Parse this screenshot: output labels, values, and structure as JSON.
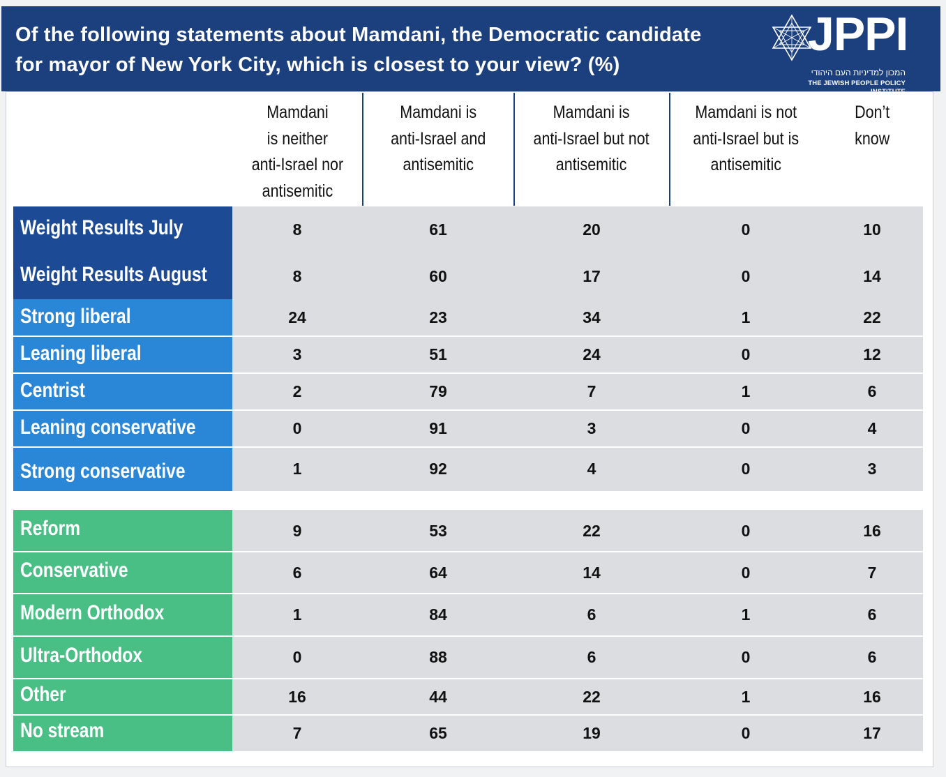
{
  "header": {
    "title_line1": "Of the following statements about Mamdani, the Democratic candidate",
    "title_line2": "for mayor of New York City, which is closest to your view? (%)"
  },
  "logo": {
    "name": "JPPI",
    "hebrew": "המכון למדיניות העם היהודי",
    "english": "THE JEWISH PEOPLE POLICY INSTITUTE"
  },
  "colors": {
    "header_bg": "#1c3f7e",
    "group_weight": "#1d4a95",
    "group_ideology": "#2a87d8",
    "group_stream": "#49bf86",
    "cell_bg": "#dcdde0"
  },
  "chart_data": {
    "type": "table",
    "title": "Of the following statements about Mamdani, the Democratic candidate for mayor of New York City, which is closest to your view? (%)",
    "columns": [
      "Mamdani\nis neither\nanti-Israel nor\nantisemitic",
      "Mamdani is\nanti-Israel and\nantisemitic",
      "Mamdani is\nanti-Israel but not\nantisemitic",
      "Mamdani is not\nanti-Israel but is\nantisemitic",
      "Don’t\nknow"
    ],
    "groups": [
      {
        "color": "#1d4a95",
        "rows": [
          {
            "label": "Weight Results July",
            "values": [
              8,
              61,
              20,
              0,
              10
            ]
          },
          {
            "label": "Weight Results August",
            "values": [
              8,
              60,
              17,
              0,
              14
            ]
          }
        ]
      },
      {
        "color": "#2a87d8",
        "rows": [
          {
            "label": "Strong liberal",
            "values": [
              24,
              23,
              34,
              1,
              22
            ]
          },
          {
            "label": "Leaning liberal",
            "values": [
              3,
              51,
              24,
              0,
              12
            ]
          },
          {
            "label": "Centrist",
            "values": [
              2,
              79,
              7,
              1,
              6
            ]
          },
          {
            "label": "Leaning conservative",
            "values": [
              0,
              91,
              3,
              0,
              4
            ]
          },
          {
            "label": "Strong conservative",
            "values": [
              1,
              92,
              4,
              0,
              3
            ]
          }
        ]
      },
      {
        "color": "#49bf86",
        "rows": [
          {
            "label": "Reform",
            "values": [
              9,
              53,
              22,
              0,
              16
            ]
          },
          {
            "label": "Conservative",
            "values": [
              6,
              64,
              14,
              0,
              7
            ]
          },
          {
            "label": "Modern Orthodox",
            "values": [
              1,
              84,
              6,
              1,
              6
            ]
          },
          {
            "label": "Ultra-Orthodox",
            "values": [
              0,
              88,
              6,
              0,
              6
            ]
          },
          {
            "label": "Other",
            "values": [
              16,
              44,
              22,
              1,
              16
            ]
          },
          {
            "label": "No stream",
            "values": [
              7,
              65,
              19,
              0,
              17
            ]
          }
        ]
      }
    ]
  }
}
